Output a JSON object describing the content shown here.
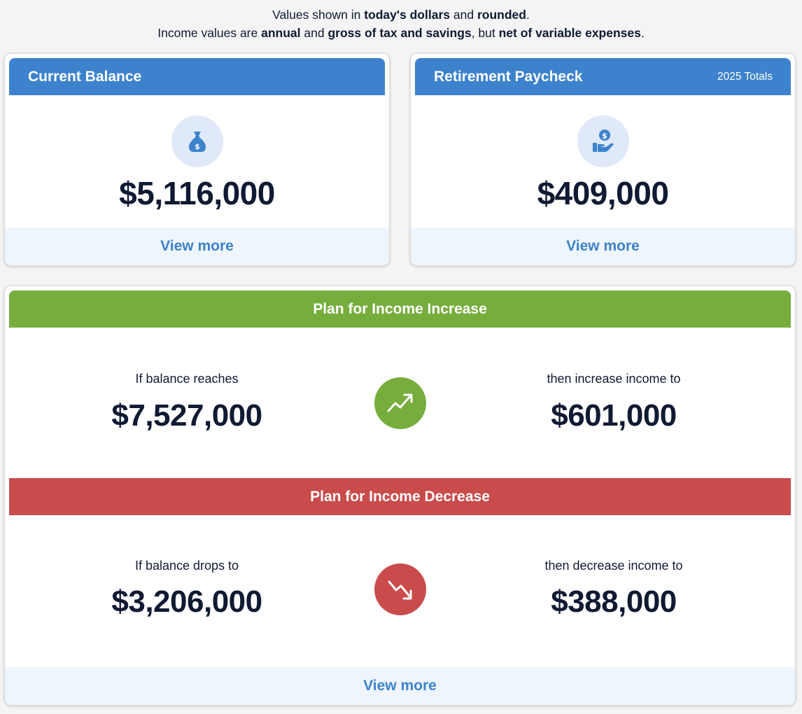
{
  "disclaimer": {
    "line1_a": "Values shown in ",
    "line1_b": "today's dollars",
    "line1_c": " and ",
    "line1_d": "rounded",
    "line1_e": ".",
    "line2_a": "Income values are ",
    "line2_b": "annual",
    "line2_c": " and ",
    "line2_d": "gross of tax and savings",
    "line2_e": ", but ",
    "line2_f": "net of variable expenses",
    "line2_g": "."
  },
  "current_balance": {
    "title": "Current Balance",
    "icon": "money-bag-icon",
    "value": "$5,116,000",
    "view_more": "View more"
  },
  "retirement_paycheck": {
    "title": "Retirement Paycheck",
    "subtitle": "2025 Totals",
    "icon": "hand-dollar-icon",
    "value": "$409,000",
    "view_more": "View more"
  },
  "plan": {
    "increase": {
      "title": "Plan for Income Increase",
      "left_label": "If balance reaches",
      "left_value": "$7,527,000",
      "right_label": "then increase income to",
      "right_value": "$601,000",
      "icon": "trend-up-icon",
      "color": "#76ad3d"
    },
    "decrease": {
      "title": "Plan for Income Decrease",
      "left_label": "If balance drops to",
      "left_value": "$3,206,000",
      "right_label": "then decrease income to",
      "right_value": "$388,000",
      "icon": "trend-down-icon",
      "color": "#c94b4b"
    },
    "view_more": "View more"
  },
  "colors": {
    "accent_blue": "#3d82cc",
    "icon_bg": "#dfe9f9",
    "increase_green": "#76ad3d",
    "decrease_red": "#c94b4b",
    "text_dark": "#0f1a33",
    "view_more_bg": "#eef5fc"
  }
}
